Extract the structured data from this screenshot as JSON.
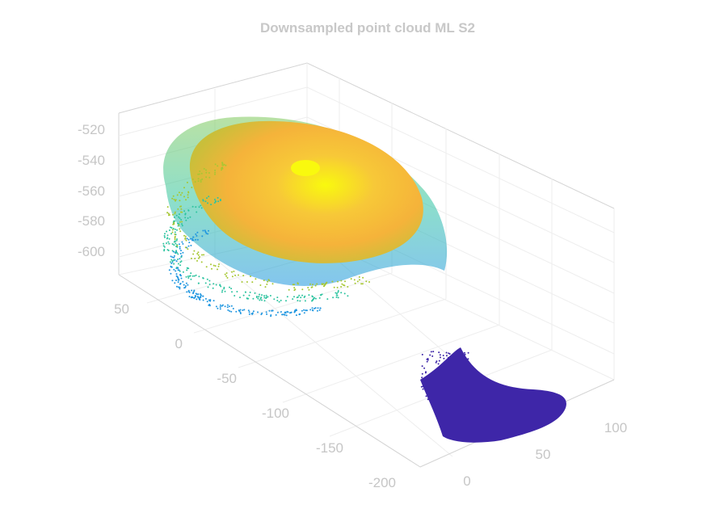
{
  "chart_data": {
    "type": "scatter",
    "projection": "3d",
    "title": "Downsampled point cloud ML S2",
    "xlabel": "",
    "ylabel": "",
    "zlabel": "",
    "grid": true,
    "colormap": "parula",
    "z_ticks": [
      "-520",
      "-540",
      "-560",
      "-580",
      "-600"
    ],
    "x_ticks": [
      "50",
      "0",
      "-50",
      "-100",
      "-150",
      "-200"
    ],
    "y_ticks": [
      "0",
      "50",
      "100"
    ],
    "xlim": [
      -200,
      50
    ],
    "ylim": [
      0,
      100
    ],
    "zlim": [
      -610,
      -515
    ],
    "clusters": [
      {
        "name": "",
        "description_shape": "dome",
        "center": [
          -40,
          5,
          -545
        ],
        "z_range": [
          -605,
          -520
        ]
      },
      {
        "name": "",
        "description_shape": "flat patch",
        "center": [
          -150,
          60,
          -610
        ],
        "z_range": [
          -612,
          -605
        ]
      }
    ],
    "colors": {
      "low": "#3e26a8",
      "mid_low": "#1f96e0",
      "mid": "#2ec4a0",
      "mid_high": "#a6c732",
      "high": "#f5b33a",
      "top": "#f9f90e",
      "text": "#c6c6c6"
    }
  }
}
